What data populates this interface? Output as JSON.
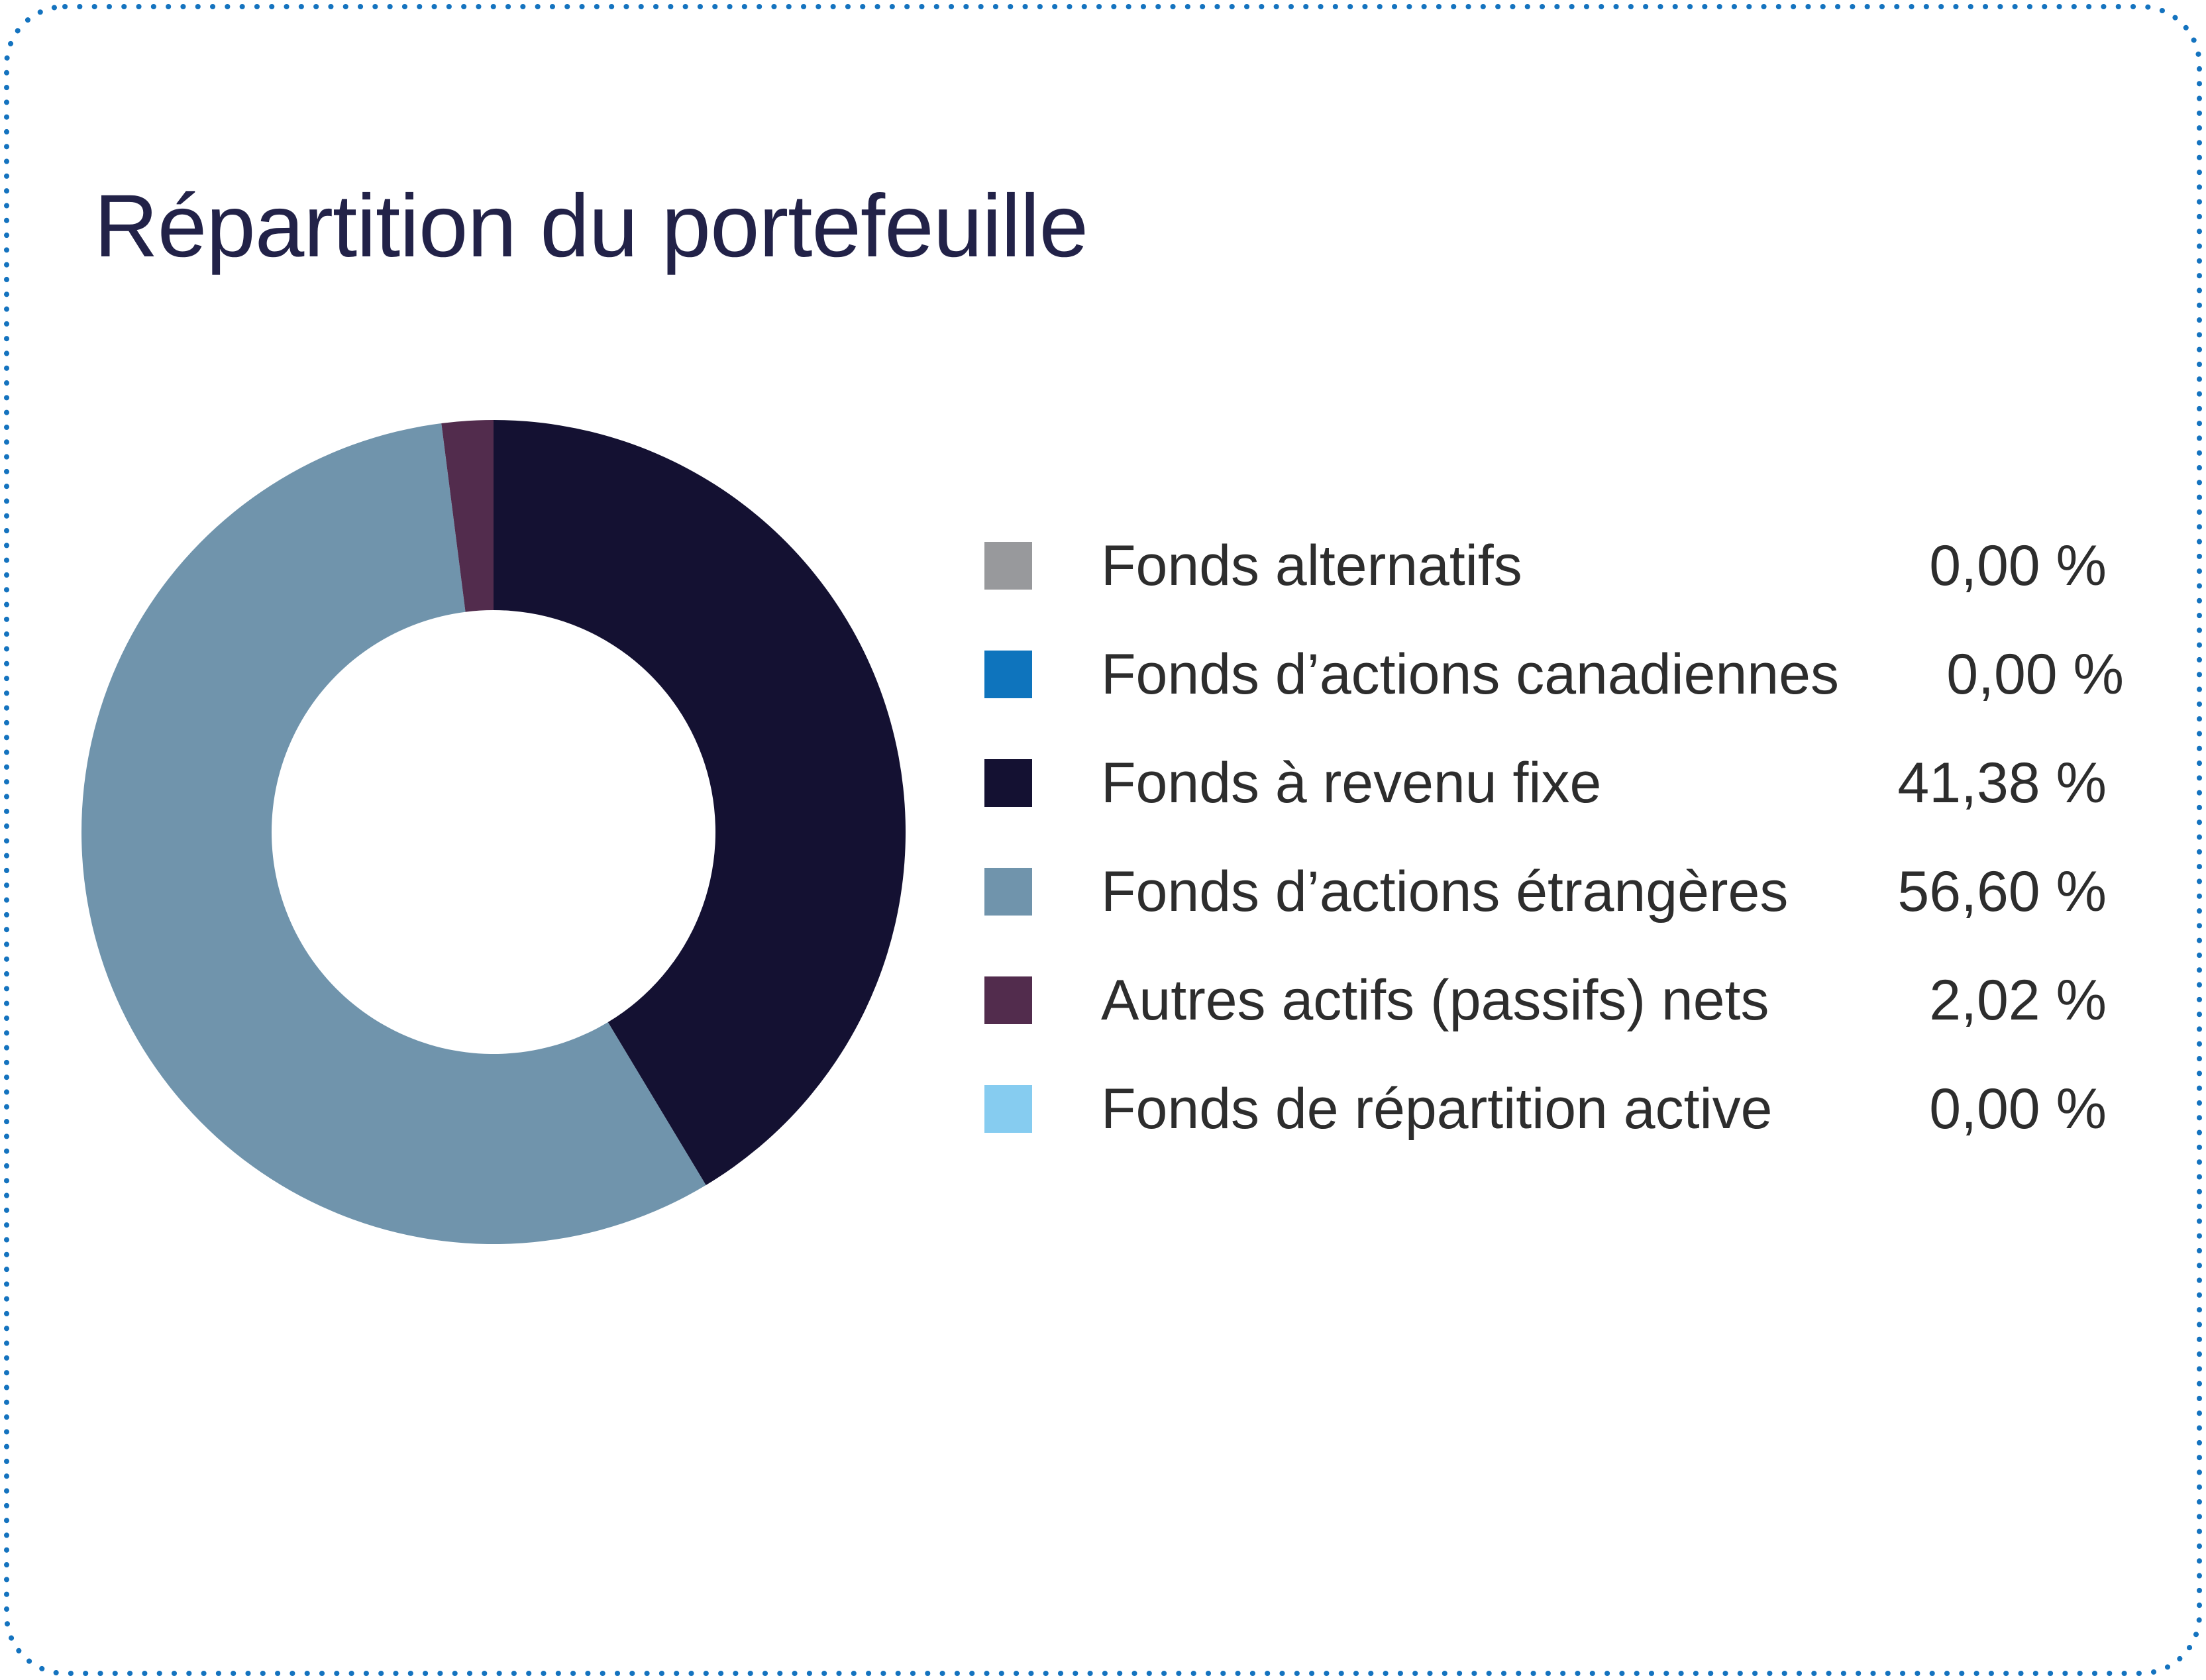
{
  "card": {
    "background": "#ffffff",
    "border_color": "#1473bf"
  },
  "title": "Répartition du portefeuille",
  "title_color": "#222248",
  "text_color": "#2d2d2d",
  "chart_data": {
    "type": "pie",
    "subtype": "donut",
    "title": "Répartition du portefeuille",
    "legend_position": "right",
    "start_angle_deg": 0,
    "direction": "clockwise",
    "outer_radius_px": 622,
    "inner_radius_px": 335,
    "slices": [
      {
        "label": "Fonds alternatifs",
        "value": 0.0,
        "display": "0,00 %",
        "color": "#98999c"
      },
      {
        "label": "Fonds d’actions canadiennes",
        "value": 0.0,
        "display": "0,00 %",
        "color": "#0e74bd"
      },
      {
        "label": "Fonds à revenu fixe",
        "value": 41.38,
        "display": "41,38 %",
        "color": "#141132"
      },
      {
        "label": "Fonds d’actions étrangères",
        "value": 56.6,
        "display": "56,60 %",
        "color": "#7094ac"
      },
      {
        "label": "Autres actifs (passifs) nets",
        "value": 2.02,
        "display": "2,02 %",
        "color": "#522c4d"
      },
      {
        "label": "Fonds de répartition active",
        "value": 0.0,
        "display": "0,00 %",
        "color": "#86ccf0"
      }
    ]
  }
}
